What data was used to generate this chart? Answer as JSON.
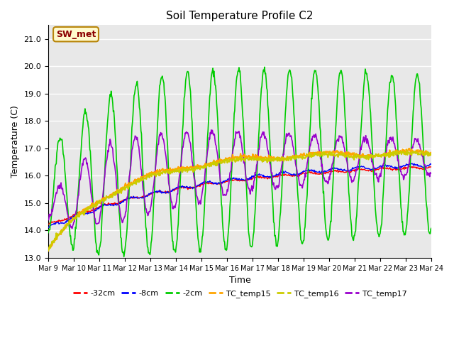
{
  "title": "Soil Temperature Profile C2",
  "xlabel": "Time",
  "ylabel": "Temperature (C)",
  "ylim": [
    13.0,
    21.5
  ],
  "yticks": [
    13.0,
    14.0,
    15.0,
    16.0,
    17.0,
    18.0,
    19.0,
    20.0,
    21.0
  ],
  "x_labels": [
    "Mar 9",
    "Mar 10",
    "Mar 11",
    "Mar 12",
    "Mar 13",
    "Mar 14",
    "Mar 15",
    "Mar 16",
    "Mar 17",
    "Mar 18",
    "Mar 19",
    "Mar 20",
    "Mar 21",
    "Mar 22",
    "Mar 23",
    "Mar 24"
  ],
  "annotation_text": "SW_met",
  "annotation_color": "#8B0000",
  "annotation_bg": "#FFFACD",
  "annotation_border": "#B8860B",
  "bg_color": "#E8E8E8",
  "line_colors": {
    "m32cm": "#FF0000",
    "m8cm": "#0000FF",
    "m2cm": "#00CC00",
    "TC_temp15": "#FFA500",
    "TC_temp16": "#CCCC00",
    "TC_temp17": "#9900CC"
  },
  "legend_labels": [
    "-32cm",
    "-8cm",
    "-2cm",
    "TC_temp15",
    "TC_temp16",
    "TC_temp17"
  ],
  "legend_colors": [
    "#FF0000",
    "#0000FF",
    "#00CC00",
    "#FFA500",
    "#CCCC00",
    "#9900CC"
  ],
  "n_points": 720,
  "figsize": [
    6.4,
    4.8
  ],
  "dpi": 100
}
